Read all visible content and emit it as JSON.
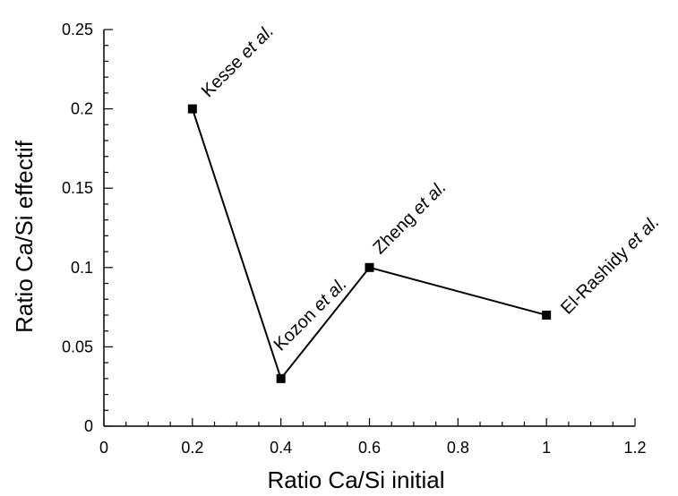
{
  "chart_data": {
    "type": "line",
    "title": "",
    "xlabel": "Ratio Ca/Si initial",
    "ylabel": "Ratio Ca/Si effectif",
    "xlim": [
      0,
      1.2
    ],
    "ylim": [
      0,
      0.25
    ],
    "x_ticks": [
      "0",
      "0.2",
      "0.4",
      "0.6",
      "0.8",
      "1",
      "1.2"
    ],
    "y_ticks": [
      "0",
      "0.05",
      "0.1",
      "0.15",
      "0.2",
      "0.25"
    ],
    "grid": false,
    "legend": "none",
    "series": [
      {
        "x": [
          0.2,
          0.4,
          0.6,
          1.0
        ],
        "y": [
          0.2,
          0.03,
          0.1,
          0.07
        ],
        "color": "#000000",
        "marker": "square"
      }
    ],
    "annotations": [
      {
        "author": "Kesse",
        "suffix": "et al.",
        "x": 0.2,
        "y": 0.2
      },
      {
        "author": "Kozon",
        "suffix": "et al.",
        "x": 0.4,
        "y": 0.03
      },
      {
        "author": "Zheng",
        "suffix": "et al.",
        "x": 0.6,
        "y": 0.1
      },
      {
        "author": "El-Rashidy",
        "suffix": "et al.",
        "x": 1.0,
        "y": 0.07
      }
    ]
  }
}
